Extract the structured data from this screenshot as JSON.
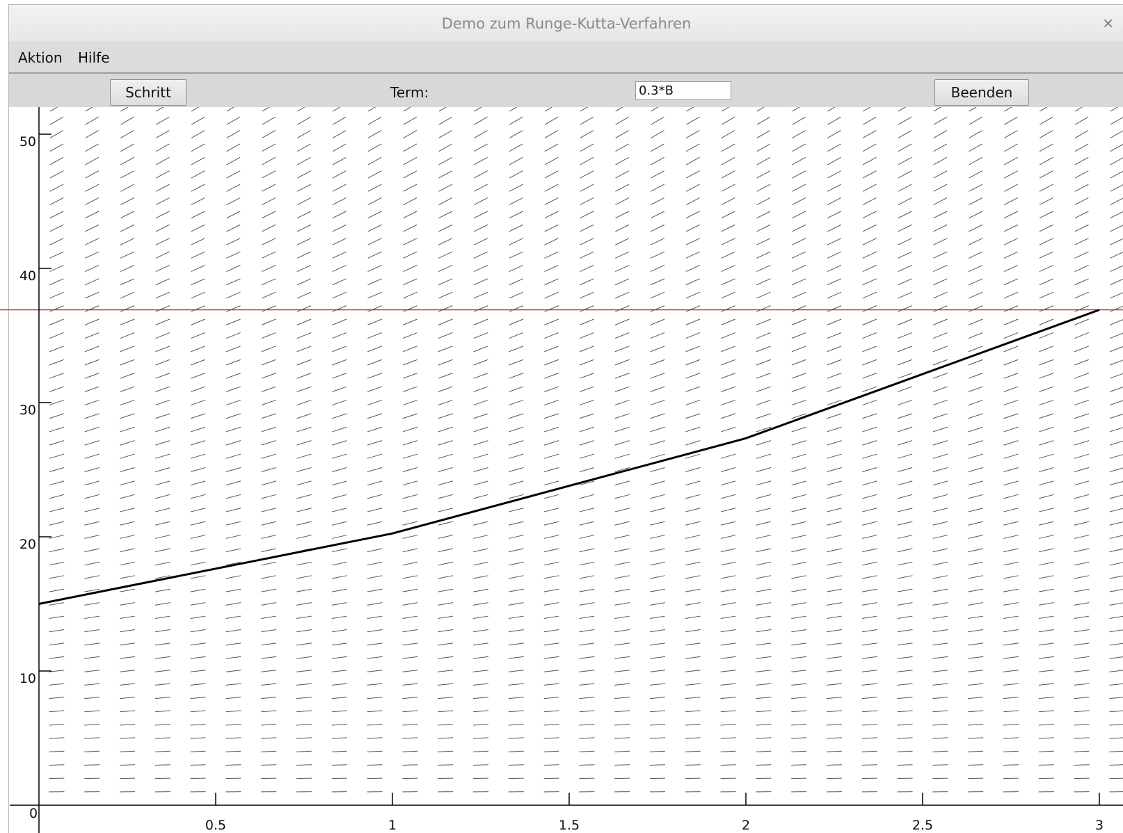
{
  "window": {
    "title": "Demo zum Runge-Kutta-Verfahren",
    "close_glyph": "×"
  },
  "menu": {
    "items": [
      "Aktion",
      "Hilfe"
    ]
  },
  "toolbar": {
    "step_label": "Schritt",
    "term_label": "Term:",
    "term_value": "0.3*B",
    "quit_label": "Beenden"
  },
  "icons": {
    "close": "close-icon"
  },
  "chart_data": {
    "type": "line",
    "equation": "0.3*B",
    "direction_field": true,
    "xlim": [
      0,
      3.04
    ],
    "ylim": [
      0,
      52
    ],
    "x_ticks": [
      0.5,
      1,
      1.5,
      2,
      2.5,
      3
    ],
    "x_tick_labels": [
      "0.5",
      "1",
      "1.5",
      "2",
      "2.5",
      "3"
    ],
    "y_ticks": [
      0,
      10,
      20,
      30,
      40,
      50
    ],
    "y_tick_labels": [
      "0",
      "10",
      "20",
      "30",
      "40",
      "50"
    ],
    "series": [
      {
        "x": [
          0,
          1,
          2,
          3
        ],
        "y": [
          15,
          20.25,
          27.34,
          36.91
        ],
        "color": "#000000"
      }
    ],
    "reference_line": {
      "y": 36.91,
      "color": "#ff0000"
    },
    "colors": {
      "curve": "#000000",
      "reference": "#ff0000",
      "field": "#555555",
      "axes": "#000000"
    }
  }
}
